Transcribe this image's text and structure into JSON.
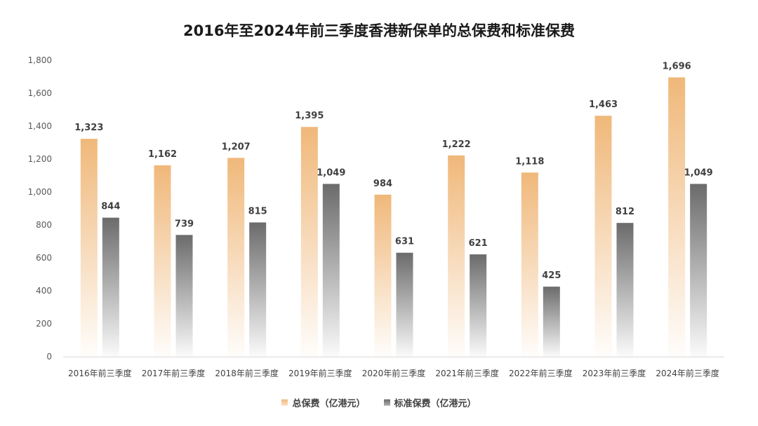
{
  "chart_data": {
    "type": "bar",
    "title": "2016年至2024年前三季度香港新保单的总保费和标准保费",
    "categories": [
      "2016年前三季度",
      "2017年前三季度",
      "2018年前三季度",
      "2019年前三季度",
      "2020年前三季度",
      "2021年前三季度",
      "2022年前三季度",
      "2023年前三季度",
      "2024年前三季度"
    ],
    "series": [
      {
        "name": "总保费（亿港元）",
        "values": [
          1323,
          1162,
          1207,
          1395,
          984,
          1222,
          1118,
          1463,
          1696
        ],
        "labels": [
          "1,323",
          "1,162",
          "1,207",
          "1,395",
          "984",
          "1,222",
          "1,118",
          "1,463",
          "1,696"
        ],
        "color": "#F0B87A"
      },
      {
        "name": "标准保费（亿港元）",
        "values": [
          844,
          739,
          815,
          1049,
          631,
          621,
          425,
          812,
          1049
        ],
        "labels": [
          "844",
          "739",
          "815",
          "1,049",
          "631",
          "621",
          "425",
          "812",
          "1,049"
        ],
        "color": "#6B6B6B"
      }
    ],
    "ylim": [
      0,
      1800
    ],
    "yticks": [
      0,
      200,
      400,
      600,
      800,
      1000,
      1200,
      1400,
      1600,
      1800
    ],
    "ytick_labels": [
      "0",
      "200",
      "400",
      "600",
      "800",
      "1,000",
      "1,200",
      "1,400",
      "1,600",
      "1,800"
    ],
    "grid": false,
    "legend_position": "bottom-center"
  }
}
